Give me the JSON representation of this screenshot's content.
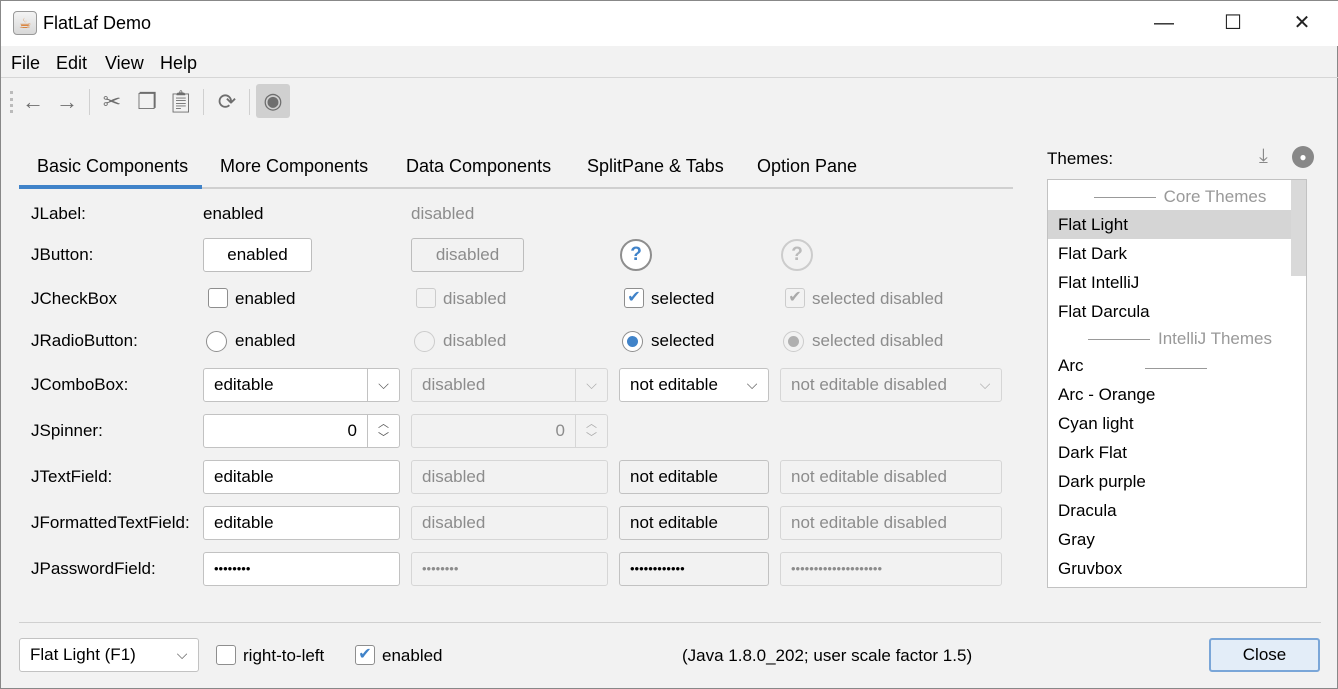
{
  "window": {
    "title": "FlatLaf Demo",
    "icon": "java-cup-icon"
  },
  "menu": [
    "File",
    "Edit",
    "View",
    "Help"
  ],
  "toolbar": [
    "back-arrow-icon",
    "forward-arrow-icon",
    "cut-icon",
    "copy-icon",
    "paste-icon",
    "refresh-icon",
    "eye-icon"
  ],
  "tabs": [
    "Basic Components",
    "More Components",
    "Data Components",
    "SplitPane & Tabs",
    "Option Pane"
  ],
  "rows": {
    "label": {
      "name": "JLabel:",
      "enabled": "enabled",
      "disabled": "disabled"
    },
    "button": {
      "name": "JButton:",
      "enabled": "enabled",
      "disabled": "disabled",
      "help": "?"
    },
    "checkbox": {
      "name": "JCheckBox",
      "enabled": "enabled",
      "disabled": "disabled",
      "selected": "selected",
      "selected_disabled": "selected disabled"
    },
    "radio": {
      "name": "JRadioButton:",
      "enabled": "enabled",
      "disabled": "disabled",
      "selected": "selected",
      "selected_disabled": "selected disabled"
    },
    "combo": {
      "name": "JComboBox:",
      "editable": "editable",
      "disabled": "disabled",
      "not_editable": "not editable",
      "not_editable_disabled": "not editable disabled"
    },
    "spinner": {
      "name": "JSpinner:",
      "value": "0",
      "disabled_value": "0"
    },
    "textfield": {
      "name": "JTextField:",
      "editable": "editable",
      "disabled": "disabled",
      "not_editable": "not editable",
      "not_editable_disabled": "not editable disabled"
    },
    "formatted": {
      "name": "JFormattedTextField:",
      "editable": "editable",
      "disabled": "disabled",
      "not_editable": "not editable",
      "not_editable_disabled": "not editable disabled"
    },
    "password": {
      "name": "JPasswordField:",
      "editable": "••••••••",
      "disabled": "••••••••",
      "not_editable": "••••••••••••",
      "not_editable_disabled": "••••••••••••••••••••"
    }
  },
  "themes": {
    "label": "Themes:",
    "icons": [
      "download-icon",
      "github-icon"
    ],
    "items": [
      {
        "text": "Core Themes",
        "header": true
      },
      {
        "text": "Flat Light",
        "selected": true
      },
      {
        "text": "Flat Dark"
      },
      {
        "text": "Flat IntelliJ"
      },
      {
        "text": "Flat Darcula"
      },
      {
        "text": "IntelliJ Themes",
        "header": true
      },
      {
        "text": "Arc"
      },
      {
        "text": "Arc - Orange"
      },
      {
        "text": "Cyan light"
      },
      {
        "text": "Dark Flat"
      },
      {
        "text": "Dark purple"
      },
      {
        "text": "Dracula"
      },
      {
        "text": "Gray"
      },
      {
        "text": "Gruvbox"
      }
    ]
  },
  "bottom": {
    "theme_combo": "Flat Light (F1)",
    "rtl": "right-to-left",
    "rtl_checked": false,
    "enabled": "enabled",
    "enabled_checked": true,
    "info": "(Java 1.8.0_202;  user scale factor 1.5)",
    "close": "Close"
  },
  "colors": {
    "accent": "#4083c9"
  }
}
